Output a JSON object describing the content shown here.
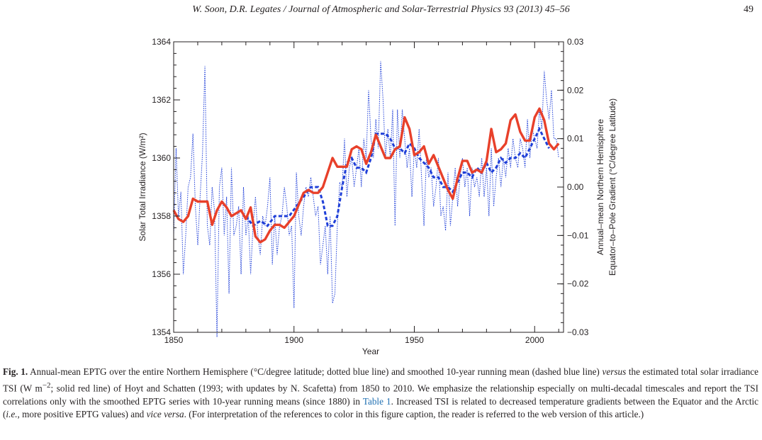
{
  "header": {
    "running_title": "W. Soon, D.R. Legates / Journal of Atmospheric and Solar-Terrestrial Physics 93 (2013) 45–56",
    "page_number": "49"
  },
  "chart_data": {
    "type": "line",
    "xlabel": "Year",
    "ylabel_left": "Solar Total Irradiance (W/m²)",
    "ylabel_right_line1": "Annual–mean Northern Hemisphere",
    "ylabel_right_line2": "Equator–to–Pole Gradient (°C/degree Latitude)",
    "xlim": [
      1850,
      2012
    ],
    "ylim_left": [
      1354,
      1364
    ],
    "ylim_right": [
      -0.03,
      0.03
    ],
    "x_ticks": [
      "1850",
      "1900",
      "1950",
      "2000"
    ],
    "y_ticks_left": [
      "1354",
      "1356",
      "1358",
      "1360",
      "1362",
      "1364"
    ],
    "y_ticks_right": [
      "−0.03",
      "−0.02",
      "−0.01",
      "0.00",
      "0.01",
      "0.02",
      "0.03"
    ],
    "colors": {
      "tsi": "#e8402a",
      "eptg": "#1f3fd8"
    },
    "series": [
      {
        "axis": "left",
        "style": "solid",
        "x": [
          1850,
          1852,
          1854,
          1856,
          1858,
          1860,
          1862,
          1864,
          1866,
          1868,
          1870,
          1872,
          1874,
          1876,
          1878,
          1880,
          1882,
          1884,
          1886,
          1888,
          1890,
          1892,
          1894,
          1896,
          1898,
          1900,
          1902,
          1904,
          1906,
          1908,
          1910,
          1912,
          1914,
          1916,
          1918,
          1920,
          1922,
          1924,
          1926,
          1928,
          1930,
          1932,
          1934,
          1936,
          1938,
          1940,
          1942,
          1944,
          1946,
          1948,
          1950,
          1952,
          1954,
          1956,
          1958,
          1960,
          1962,
          1964,
          1966,
          1968,
          1970,
          1972,
          1974,
          1976,
          1978,
          1980,
          1982,
          1984,
          1986,
          1988,
          1990,
          1992,
          1994,
          1996,
          1998,
          2000,
          2002,
          2004,
          2006,
          2008,
          2010
        ],
        "values": [
          1358.2,
          1357.9,
          1357.8,
          1358.0,
          1358.6,
          1358.5,
          1358.5,
          1358.5,
          1357.7,
          1358.2,
          1358.5,
          1358.3,
          1358.0,
          1358.1,
          1358.2,
          1357.9,
          1358.3,
          1357.3,
          1357.1,
          1357.2,
          1357.5,
          1357.7,
          1357.7,
          1357.6,
          1357.8,
          1358.0,
          1358.4,
          1358.8,
          1358.9,
          1358.8,
          1358.8,
          1359.0,
          1359.5,
          1360.0,
          1359.7,
          1359.7,
          1359.7,
          1360.3,
          1360.4,
          1360.3,
          1359.8,
          1360.2,
          1360.8,
          1360.4,
          1360.0,
          1360.0,
          1360.3,
          1360.4,
          1361.4,
          1361.0,
          1360.1,
          1360.2,
          1360.4,
          1359.8,
          1360.1,
          1359.7,
          1359.3,
          1358.9,
          1358.6,
          1359.3,
          1359.9,
          1359.9,
          1359.5,
          1359.6,
          1359.5,
          1359.9,
          1361.0,
          1360.2,
          1360.3,
          1360.5,
          1361.3,
          1361.5,
          1360.9,
          1360.6,
          1360.6,
          1361.4,
          1361.7,
          1361.3,
          1360.5,
          1360.3,
          1360.5
        ]
      },
      {
        "axis": "right",
        "style": "dashed",
        "x": [
          1880,
          1883,
          1886,
          1889,
          1892,
          1895,
          1898,
          1901,
          1904,
          1907,
          1910,
          1912,
          1914,
          1916,
          1918,
          1920,
          1922,
          1924,
          1926,
          1928,
          1930,
          1932,
          1934,
          1936,
          1938,
          1940,
          1942,
          1944,
          1946,
          1948,
          1950,
          1952,
          1954,
          1956,
          1958,
          1960,
          1962,
          1964,
          1966,
          1968,
          1970,
          1972,
          1974,
          1976,
          1978,
          1980,
          1982,
          1984,
          1986,
          1988,
          1990,
          1992,
          1994,
          1996,
          1998,
          2000,
          2002,
          2004,
          2006
        ],
        "values": [
          -0.006,
          -0.008,
          -0.007,
          -0.008,
          -0.006,
          -0.006,
          -0.006,
          -0.004,
          -0.002,
          0.0,
          0.0,
          -0.003,
          -0.008,
          -0.008,
          -0.006,
          0.0,
          0.005,
          0.006,
          0.004,
          0.004,
          0.003,
          0.006,
          0.011,
          0.011,
          0.011,
          0.01,
          0.008,
          0.008,
          0.007,
          0.009,
          0.008,
          0.006,
          0.005,
          0.004,
          0.002,
          0.002,
          0.0,
          0.0,
          -0.001,
          0.001,
          0.003,
          0.003,
          0.002,
          0.004,
          0.003,
          0.005,
          0.003,
          0.004,
          0.006,
          0.005,
          0.006,
          0.006,
          0.007,
          0.006,
          0.008,
          0.01,
          0.012,
          0.01,
          0.008
        ]
      },
      {
        "axis": "right",
        "style": "dotted",
        "x": [
          1850,
          1851,
          1852,
          1853,
          1854,
          1855,
          1856,
          1857,
          1858,
          1859,
          1860,
          1861,
          1862,
          1863,
          1864,
          1865,
          1866,
          1867,
          1868,
          1869,
          1870,
          1871,
          1872,
          1873,
          1874,
          1875,
          1876,
          1877,
          1878,
          1879,
          1880,
          1881,
          1882,
          1883,
          1884,
          1885,
          1886,
          1887,
          1888,
          1889,
          1890,
          1891,
          1892,
          1893,
          1894,
          1895,
          1896,
          1897,
          1898,
          1899,
          1900,
          1901,
          1902,
          1903,
          1904,
          1905,
          1906,
          1907,
          1908,
          1909,
          1910,
          1911,
          1912,
          1913,
          1914,
          1915,
          1916,
          1917,
          1918,
          1919,
          1920,
          1921,
          1922,
          1923,
          1924,
          1925,
          1926,
          1927,
          1928,
          1929,
          1930,
          1931,
          1932,
          1933,
          1934,
          1935,
          1936,
          1937,
          1938,
          1939,
          1940,
          1941,
          1942,
          1943,
          1944,
          1945,
          1946,
          1947,
          1948,
          1949,
          1950,
          1951,
          1952,
          1953,
          1954,
          1955,
          1956,
          1957,
          1958,
          1959,
          1960,
          1961,
          1962,
          1963,
          1964,
          1965,
          1966,
          1967,
          1968,
          1969,
          1970,
          1971,
          1972,
          1973,
          1974,
          1975,
          1976,
          1977,
          1978,
          1979,
          1980,
          1981,
          1982,
          1983,
          1984,
          1985,
          1986,
          1987,
          1988,
          1989,
          1990,
          1991,
          1992,
          1993,
          1994,
          1995,
          1996,
          1997,
          1998,
          1999,
          2000,
          2001,
          2002,
          2003,
          2004,
          2005,
          2006,
          2007,
          2008,
          2009,
          2010
        ],
        "values": [
          -0.01,
          0.008,
          -0.006,
          -0.001,
          -0.018,
          -0.01,
          0.0,
          0.002,
          0.011,
          -0.004,
          -0.012,
          -0.002,
          0.007,
          0.025,
          -0.008,
          -0.012,
          0.0,
          -0.005,
          -0.031,
          0.0,
          0.004,
          -0.01,
          -0.002,
          -0.022,
          0.004,
          -0.01,
          -0.008,
          -0.004,
          -0.018,
          0.0,
          -0.01,
          -0.006,
          -0.018,
          -0.008,
          -0.002,
          -0.01,
          -0.014,
          -0.006,
          -0.008,
          -0.004,
          0.002,
          -0.016,
          -0.006,
          -0.014,
          -0.008,
          -0.006,
          0.0,
          -0.004,
          -0.01,
          -0.008,
          -0.025,
          0.003,
          -0.006,
          -0.01,
          -0.004,
          0.0,
          -0.002,
          0.002,
          -0.002,
          -0.006,
          -0.004,
          -0.016,
          -0.012,
          -0.008,
          -0.018,
          -0.006,
          -0.024,
          -0.022,
          -0.008,
          0.001,
          0.0,
          0.01,
          -0.002,
          0.004,
          0.006,
          0.0,
          0.004,
          0.008,
          0.0,
          0.01,
          0.006,
          0.02,
          0.01,
          0.006,
          0.014,
          0.008,
          0.026,
          0.018,
          0.006,
          0.012,
          0.006,
          0.016,
          -0.008,
          0.016,
          0.006,
          0.016,
          0.01,
          0.004,
          0.008,
          -0.002,
          0.008,
          0.004,
          0.012,
          0.002,
          -0.008,
          0.006,
          0.002,
          0.004,
          -0.004,
          0.0,
          0.006,
          -0.006,
          -0.004,
          -0.009,
          0.003,
          -0.008,
          -0.002,
          0.004,
          -0.004,
          0.002,
          0.006,
          0.0,
          0.004,
          -0.006,
          0.004,
          0.0,
          0.002,
          -0.002,
          0.006,
          -0.002,
          0.004,
          -0.006,
          0.008,
          -0.004,
          0.002,
          0.006,
          0.0,
          0.006,
          0.002,
          0.008,
          0.004,
          0.01,
          0.006,
          0.004,
          0.01,
          0.008,
          0.004,
          0.014,
          0.006,
          0.012,
          0.01,
          0.008,
          0.016,
          0.012,
          0.024,
          0.018,
          0.014,
          0.02,
          0.01,
          0.01,
          0.006
        ]
      }
    ]
  },
  "caption": {
    "label": "Fig. 1.",
    "part1": " Annual-mean EPTG over the entire Northern Hemisphere (°C/degree latitude; dotted blue line) and smoothed 10-year running mean (dashed blue line) ",
    "versus": "versus",
    "part2": " the estimated total solar irradiance TSI (W m",
    "sup": "−2",
    "part3": "; solid red line) of Hoyt and Schatten (1993; with updates by N. Scafetta) from 1850 to 2010. We emphasize the relationship especially on multi-decadal timescales and report the TSI correlations only with the smoothed EPTG series with 10-year running means (since 1880) in ",
    "table_ref": "Table 1",
    "part4": ". Increased TSI is related to decreased temperature gradients between the Equator and the Arctic (",
    "ie": "i.e.",
    "part5": ", more positive EPTG values) and ",
    "vice_versa": "vice versa",
    "part6": ". (For interpretation of the references to color in this figure caption, the reader is referred to the web version of this article.)"
  }
}
